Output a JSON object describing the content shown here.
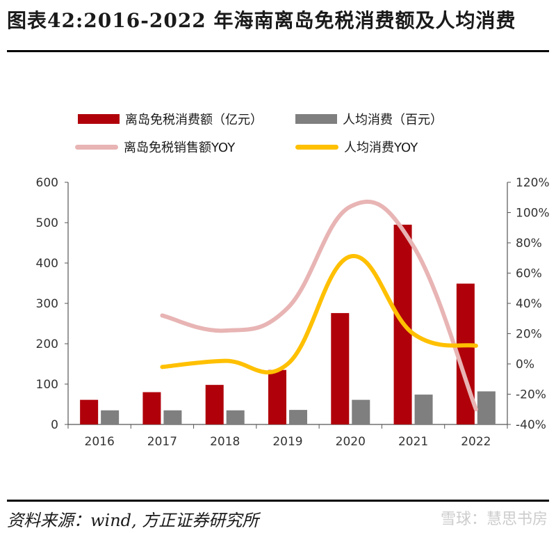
{
  "header": {
    "title": "图表42:2016-2022 年海南离岛免税消费额及人均消费"
  },
  "footer": {
    "source": "资料来源：wind, 方正证券研究所",
    "watermark": "雪球：慧思书房"
  },
  "colors": {
    "sales": "#b0000a",
    "per_capita": "#7f7f7f",
    "sales_yoy": "#e8b4b4",
    "per_capita_yoy": "#ffc000"
  },
  "legend": {
    "sales": "离岛免税消费额（亿元）",
    "per_capita": "人均消费（百元）",
    "sales_yoy": "离岛免税销售额YOY",
    "per_capita_yoy": "人均消费YOY"
  },
  "chart_data": {
    "type": "bar",
    "categories": [
      "2016",
      "2017",
      "2018",
      "2019",
      "2020",
      "2021",
      "2022"
    ],
    "series": [
      {
        "name": "离岛免税消费额（亿元）",
        "type": "bar",
        "axis": "left",
        "values": [
          61,
          80,
          98,
          135,
          276,
          495,
          349
        ]
      },
      {
        "name": "人均消费（百元）",
        "type": "bar",
        "axis": "left",
        "values": [
          35,
          35,
          35,
          36,
          61,
          74,
          82
        ]
      },
      {
        "name": "离岛免税销售额YOY",
        "type": "line",
        "axis": "right",
        "values": [
          null,
          32,
          22,
          37,
          104,
          78,
          -30
        ]
      },
      {
        "name": "人均消费YOY",
        "type": "line",
        "axis": "right",
        "values": [
          null,
          -2,
          2,
          0,
          71,
          20,
          12
        ]
      }
    ],
    "y_left": {
      "min": 0,
      "max": 600,
      "ticks": [
        0,
        100,
        200,
        300,
        400,
        500,
        600
      ]
    },
    "y_right": {
      "min": -40,
      "max": 120,
      "ticks": [
        "-40%",
        "-20%",
        "0%",
        "20%",
        "40%",
        "60%",
        "80%",
        "100%",
        "120%"
      ]
    },
    "grid": false,
    "legend_position": "top"
  }
}
